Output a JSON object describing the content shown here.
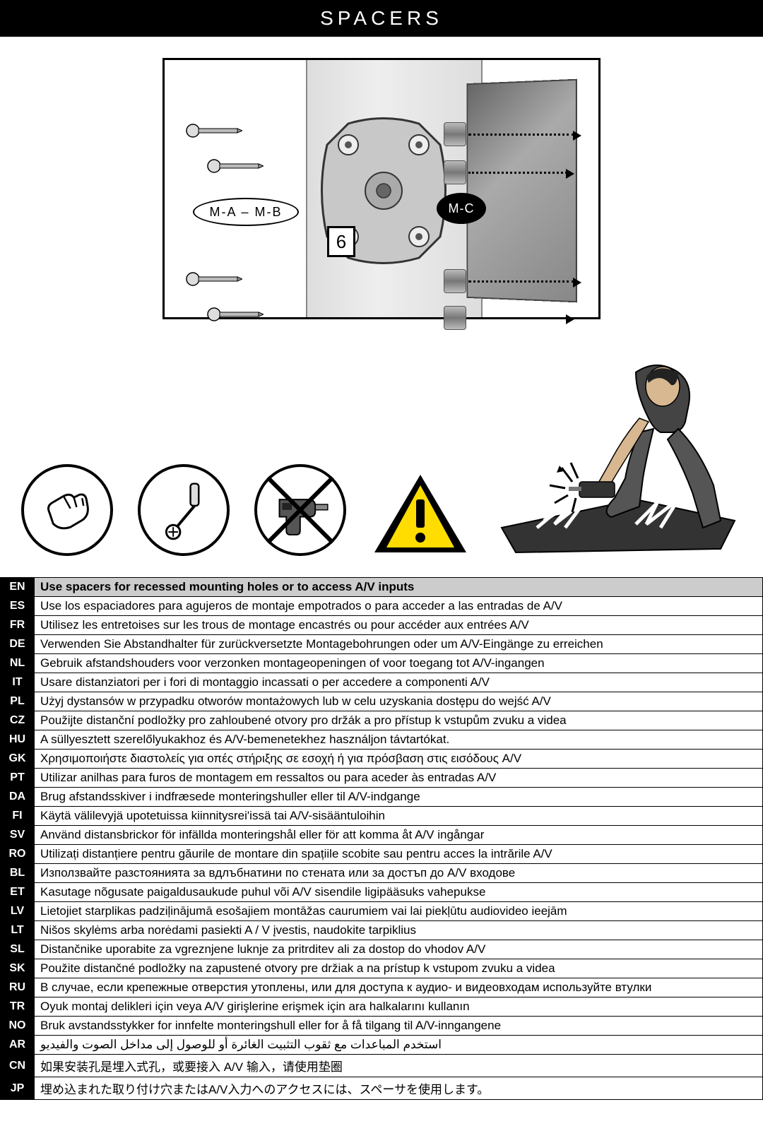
{
  "title": "SPACERS",
  "labels": {
    "mab": "M-A – M-B",
    "mc": "M-C",
    "step": "6"
  },
  "warning_mark": "!",
  "icons": {
    "hand": "hand-tighten-icon",
    "screwdriver": "screwdriver-icon",
    "nodrill": "no-power-drill-icon",
    "warning": "warning-icon",
    "damage": "tv-damage-illustration"
  },
  "table_colors": {
    "code_bg": "#000000",
    "code_fg": "#ffffff",
    "highlight_bg": "#cccccc",
    "border": "#000000"
  },
  "rows": [
    {
      "code": "EN",
      "text": "Use spacers for recessed mounting holes or to access A/V inputs",
      "highlight": true
    },
    {
      "code": "ES",
      "text": "Use los espaciadores para agujeros de montaje empotrados o para acceder a las entradas de A/V"
    },
    {
      "code": "FR",
      "text": "Utilisez les entretoises sur les trous de montage encastrés ou pour accéder aux entrées A/V"
    },
    {
      "code": "DE",
      "text": "Verwenden Sie Abstandhalter für zurückversetzte Montagebohrungen oder um A/V-Eingänge zu erreichen"
    },
    {
      "code": "NL",
      "text": "Gebruik afstandshouders voor verzonken montageopeningen of voor toegang tot A/V-ingangen"
    },
    {
      "code": "IT",
      "text": "Usare distanziatori per i fori di montaggio incassati o per accedere a componenti A/V"
    },
    {
      "code": "PL",
      "text": "Użyj dystansów w przypadku otworów montażowych lub w celu uzyskania dostępu do wejść A/V"
    },
    {
      "code": "CZ",
      "text": "Použijte distanční podložky pro zahloubené otvory pro držák a pro přístup k vstupům zvuku a videa"
    },
    {
      "code": "HU",
      "text": "A süllyesztett szerelőlyukakhoz és A/V-bemenetekhez használjon távtartókat."
    },
    {
      "code": "GK",
      "text": "Χρησιμοποιήστε διαστολείς για οπές στήριξης σε εσοχή ή για πρόσβαση στις εισόδους A/V"
    },
    {
      "code": "PT",
      "text": "Utilizar anilhas para furos de montagem em ressaltos ou para aceder às entradas A/V"
    },
    {
      "code": "DA",
      "text": "Brug afstandsskiver i indfræsede monteringshuller eller til A/V-indgange"
    },
    {
      "code": "FI",
      "text": "Käytä välilevyjä upotetuissa kiinnitysrei'issä tai A/V-sisääntuloihin"
    },
    {
      "code": "SV",
      "text": "Använd distansbrickor för infällda monteringshål eller för att komma åt A/V ingångar"
    },
    {
      "code": "RO",
      "text": "Utilizați distanțiere pentru găurile de montare din spațiile scobite sau pentru acces la intrările A/V"
    },
    {
      "code": "BL",
      "text": "Използвайте разстоянията за вдлъбнатини по стената или за достъп до A/V входове"
    },
    {
      "code": "ET",
      "text": "Kasutage nõgusate paigaldusaukude puhul või A/V sisendile ligipääsuks vahepukse"
    },
    {
      "code": "LV",
      "text": "Lietojiet starplikas padziļinājumā esošajiem montāžas caurumiem vai lai piekļūtu audiovideo ieejām"
    },
    {
      "code": "LT",
      "text": "Nišos skylėms arba norėdami pasiekti A / V įvestis, naudokite tarpiklius"
    },
    {
      "code": "SL",
      "text": "Distančnike uporabite za vgreznjene luknje za pritrditev ali za dostop do vhodov A/V"
    },
    {
      "code": "SK",
      "text": "Použite distančné podložky na zapustené otvory pre držiak a na prístup k vstupom zvuku a videa"
    },
    {
      "code": "RU",
      "text": "В случае, если крепежные отверстия утоплены, или для доступа к аудио- и видеовходам используйте втулки"
    },
    {
      "code": "TR",
      "text": "Oyuk montaj delikleri için veya A/V girişlerine erişmek için ara halkalarını kullanın"
    },
    {
      "code": "NO",
      "text": "Bruk avstandsstykker for innfelte monteringshull eller for å få tilgang til A/V-inngangene"
    },
    {
      "code": "AR",
      "text": "استخدم المباعدات مع ثقوب التثبيت الغائرة أو للوصول إلى مداخل الصوت والفيديو",
      "rtl": true
    },
    {
      "code": "CN",
      "text": "如果安装孔是埋入式孔，或要接入 A/V 输入，请使用垫圈"
    },
    {
      "code": "JP",
      "text": "埋め込まれた取り付け穴またはA/V入力へのアクセスには、スペーサを使用します。"
    }
  ]
}
